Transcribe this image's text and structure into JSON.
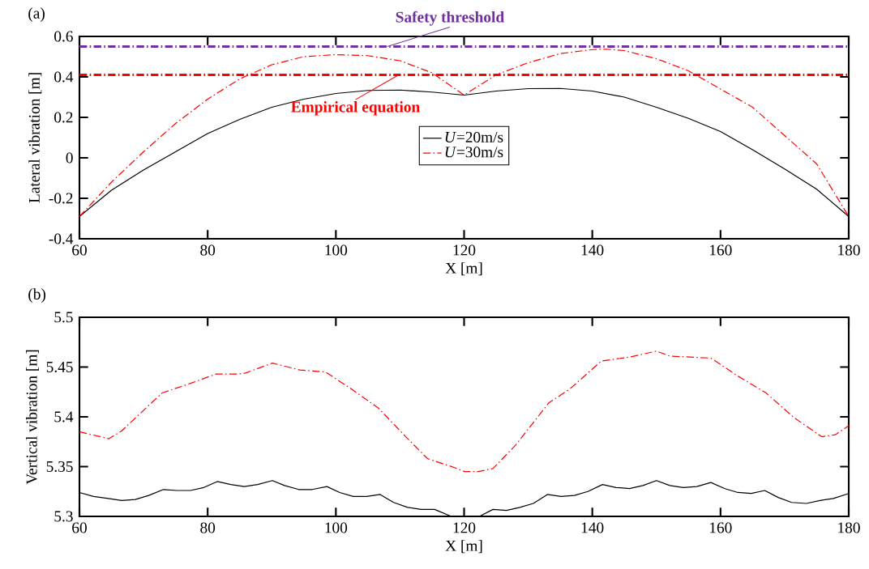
{
  "chart_data": [
    {
      "type": "line",
      "title": "(a)",
      "xlabel": "X [m]",
      "ylabel": "Lateral vibration [m]",
      "xlim": [
        60,
        180
      ],
      "ylim": [
        -0.4,
        0.6
      ],
      "xticks": [
        60,
        80,
        100,
        120,
        140,
        160,
        180
      ],
      "yticks": [
        -0.4,
        -0.2,
        0,
        0.2,
        0.4,
        0.6
      ],
      "legend": "center",
      "series": [
        {
          "name": "*U*=20m/s",
          "color": "#000000",
          "line_style": "solid",
          "x": [
            60,
            65,
            70,
            75,
            80,
            85,
            90,
            95,
            100,
            105,
            110,
            115,
            120,
            125,
            130,
            135,
            140,
            145,
            150,
            155,
            160,
            165,
            170,
            175,
            180
          ],
          "values": [
            -0.29,
            -0.16,
            -0.06,
            0.03,
            0.12,
            0.19,
            0.25,
            0.29,
            0.318,
            0.333,
            0.335,
            0.325,
            0.31,
            0.33,
            0.342,
            0.343,
            0.33,
            0.3,
            0.25,
            0.195,
            0.13,
            0.04,
            -0.055,
            -0.155,
            -0.29
          ]
        },
        {
          "name": "*U*=30m/s",
          "color": "#ff0000",
          "line_style": "dashdot",
          "x": [
            60,
            65,
            70,
            75,
            80,
            85,
            90,
            95,
            100,
            105,
            110,
            115,
            120,
            125,
            130,
            135,
            140,
            142,
            145,
            150,
            155,
            160,
            165,
            170,
            175,
            180
          ],
          "values": [
            -0.29,
            -0.12,
            0.03,
            0.17,
            0.29,
            0.39,
            0.46,
            0.5,
            0.51,
            0.505,
            0.48,
            0.42,
            0.31,
            0.41,
            0.47,
            0.515,
            0.535,
            0.537,
            0.53,
            0.49,
            0.43,
            0.34,
            0.25,
            0.11,
            -0.03,
            -0.29
          ]
        }
      ],
      "ref_lines": [
        {
          "axis": "y",
          "value": 0.55,
          "label": "Safety threshold",
          "color": "#7030a0",
          "line_style": "dashdot"
        },
        {
          "axis": "y",
          "value": 0.41,
          "label": "Empirical equation",
          "color": "#ff0000",
          "line_style": "dashdot"
        }
      ]
    },
    {
      "type": "line",
      "title": "(b)",
      "xlabel": "X [m]",
      "ylabel": "Vertical vibration [m]",
      "xlim": [
        60,
        180
      ],
      "ylim": [
        5.3,
        5.5
      ],
      "xticks": [
        60,
        80,
        100,
        120,
        140,
        160,
        180
      ],
      "yticks": [
        5.3,
        5.35,
        5.4,
        5.45,
        5.5
      ],
      "series": [
        {
          "color": "#000000",
          "line_style": "solid",
          "x": [
            60,
            62.2,
            64.5,
            66.6,
            68.7,
            70.8,
            73.1,
            75.2,
            77.3,
            79.4,
            81.5,
            83.6,
            85.7,
            87.8,
            90.1,
            92.0,
            94.2,
            96.3,
            98.6,
            100.6,
            102.7,
            104.8,
            106.9,
            109.0,
            111.2,
            113.3,
            115.4,
            118.0,
            120.1,
            122.4,
            124.5,
            126.6,
            128.7,
            130.8,
            133.0,
            135.1,
            137.2,
            139.3,
            141.6,
            143.7,
            145.8,
            147.9,
            150.0,
            152.1,
            154.2,
            156.3,
            158.5,
            160.6,
            162.7,
            164.8,
            166.9,
            169.0,
            171.1,
            173.4,
            175.5,
            177.6,
            180
          ],
          "values": [
            5.324,
            5.32,
            5.318,
            5.316,
            5.317,
            5.321,
            5.327,
            5.326,
            5.326,
            5.329,
            5.335,
            5.332,
            5.33,
            5.332,
            5.336,
            5.331,
            5.327,
            5.327,
            5.33,
            5.324,
            5.32,
            5.32,
            5.322,
            5.314,
            5.309,
            5.307,
            5.307,
            5.3,
            5.3,
            5.3,
            5.307,
            5.306,
            5.309,
            5.313,
            5.322,
            5.32,
            5.321,
            5.325,
            5.332,
            5.329,
            5.328,
            5.331,
            5.336,
            5.331,
            5.329,
            5.33,
            5.334,
            5.328,
            5.324,
            5.323,
            5.326,
            5.319,
            5.314,
            5.313,
            5.316,
            5.318,
            5.323
          ]
        },
        {
          "color": "#ff0000",
          "line_style": "dashdot",
          "x": [
            60,
            64.6,
            66.6,
            72.9,
            77.5,
            81.3,
            84.7,
            85.9,
            90.1,
            94.4,
            98.4,
            102.4,
            106.6,
            110.9,
            114.3,
            118.5,
            120.1,
            122.2,
            124.5,
            128.1,
            133.2,
            136.5,
            141.4,
            145.8,
            150.0,
            152.1,
            158.5,
            162.7,
            167.1,
            171.5,
            175.8,
            177.9,
            180
          ],
          "values": [
            5.385,
            5.378,
            5.386,
            5.424,
            5.434,
            5.443,
            5.443,
            5.444,
            5.454,
            5.447,
            5.445,
            5.428,
            5.409,
            5.38,
            5.358,
            5.349,
            5.345,
            5.345,
            5.348,
            5.372,
            5.414,
            5.428,
            5.456,
            5.46,
            5.466,
            5.461,
            5.459,
            5.441,
            5.424,
            5.399,
            5.38,
            5.382,
            5.391
          ]
        }
      ]
    }
  ]
}
